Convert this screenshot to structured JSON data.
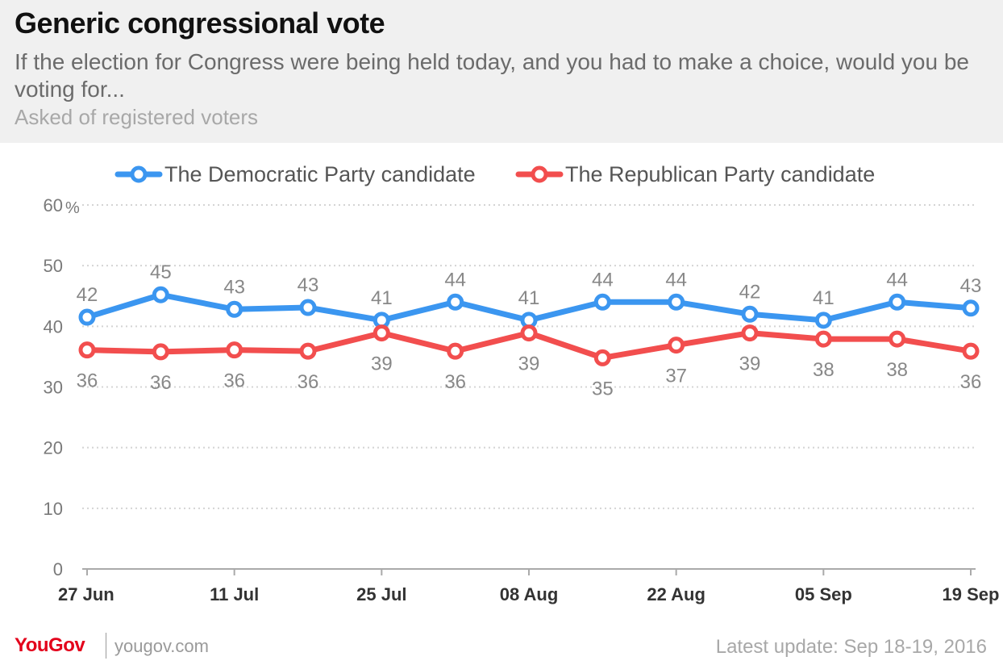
{
  "header": {
    "title": "Generic congressional vote",
    "subtitle": "If the election for Congress were being held today, and you had to make a choice, would you be voting for...",
    "note": "Asked of registered voters"
  },
  "footer": {
    "brand": "YouGov",
    "url": "yougov.com",
    "update": "Latest update: Sep 18-19, 2016"
  },
  "colors": {
    "democratic": "#3b96f0",
    "republican": "#f24e4e",
    "grid": "#d4d4d4",
    "axis_text": "#7a7a7a",
    "label_text": "#888888"
  },
  "chart_data": {
    "type": "line",
    "ylim": [
      0,
      60
    ],
    "y_ticks": [
      0,
      10,
      20,
      30,
      40,
      50,
      60
    ],
    "y_unit": "%",
    "x_tick_labels": [
      "27 Jun",
      "11 Jul",
      "25 Jul",
      "08 Aug",
      "22 Aug",
      "05 Sep",
      "19 Sep"
    ],
    "legend_position": "top-center",
    "grid": true,
    "series": [
      {
        "name": "The Democratic Party candidate",
        "color": "#3b96f0",
        "values": [
          41.5,
          45.2,
          42.8,
          43.1,
          41.0,
          44.0,
          41.0,
          44.0,
          44.0,
          42.0,
          41.0,
          44.0,
          43.0
        ],
        "labels": [
          "42",
          "45",
          "43",
          "43",
          "41",
          "44",
          "41",
          "44",
          "44",
          "42",
          "41",
          "44",
          "43"
        ]
      },
      {
        "name": "The Republican Party candidate",
        "color": "#f24e4e",
        "values": [
          36.1,
          35.8,
          36.1,
          35.9,
          38.9,
          35.9,
          38.9,
          34.8,
          36.9,
          38.9,
          37.9,
          37.9,
          35.9
        ],
        "labels": [
          "36",
          "36",
          "36",
          "36",
          "39",
          "36",
          "39",
          "35",
          "37",
          "39",
          "38",
          "38",
          "36"
        ]
      }
    ]
  }
}
